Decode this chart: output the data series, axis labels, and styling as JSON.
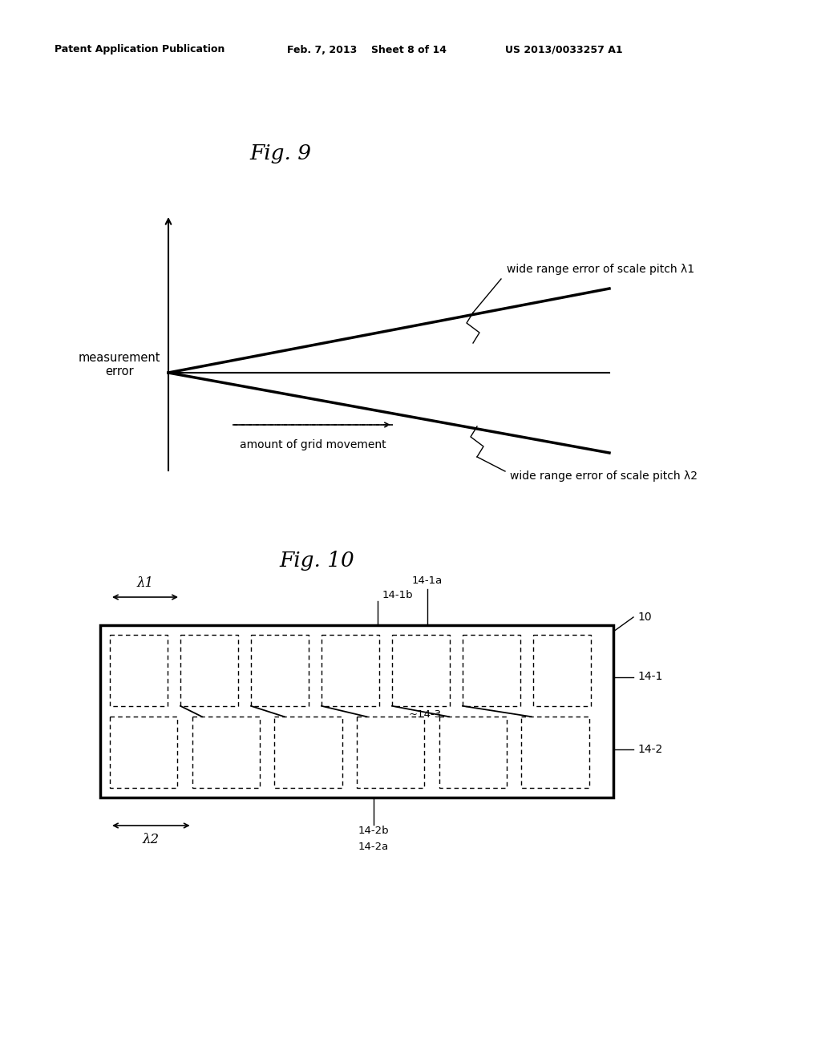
{
  "bg_color": "#ffffff",
  "header_text": "Patent Application Publication",
  "header_date": "Feb. 7, 2013",
  "header_sheet": "Sheet 8 of 14",
  "header_patent": "US 2013/0033257 A1",
  "fig9_title": "Fig. 9",
  "fig10_title": "Fig. 10",
  "fig9_ylabel": "measurement\nerror",
  "fig9_xlabel": "amount of grid movement",
  "fig9_label1": "wide range error of scale pitch λ1",
  "fig9_label2": "wide range error of scale pitch λ2",
  "fig10_label_10": "10",
  "fig10_label_141": "14-1",
  "fig10_label_142": "14-2",
  "fig10_label_143": "~14-3",
  "fig10_label_141a": "14-1a",
  "fig10_label_141b": "14-1b",
  "fig10_label_142a": "14-2a",
  "fig10_label_142b": "14-2b",
  "fig10_lambda1": "λ1",
  "fig10_lambda2": "λ2"
}
